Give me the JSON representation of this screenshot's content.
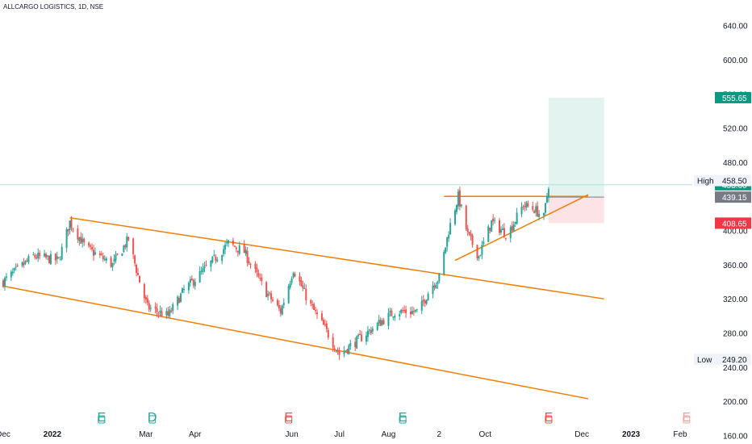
{
  "header": {
    "title": "ALLCARGO LOGISTICS, 1D, NSE"
  },
  "colors": {
    "up": "#26a69a",
    "down": "#ef5350",
    "pattern": "#f57c00",
    "target_zone": "#e3f3ef",
    "stop_zone": "#fce4e6",
    "close_line": "#b2dfdb"
  },
  "chart_data": {
    "type": "candlestick",
    "title": "ALLCARGO LOGISTICS, 1D, NSE",
    "y_axis": {
      "ticks": [
        "640.00",
        "600.00",
        "560.00",
        "520.00",
        "480.00",
        "440.00",
        "400.00",
        "360.00",
        "320.00",
        "280.00",
        "240.00",
        "200.00",
        "160.00"
      ],
      "range": [
        150,
        670
      ]
    },
    "x_axis": {
      "labels": [
        {
          "text": "Dec",
          "date": "2021-12-01",
          "bold": false
        },
        {
          "text": "2022",
          "date": "2022-01-01",
          "bold": true
        },
        {
          "text": "Mar",
          "date": "2022-03-01",
          "bold": false
        },
        {
          "text": "Apr",
          "date": "2022-04-01",
          "bold": false
        },
        {
          "text": "Jun",
          "date": "2022-06-01",
          "bold": false
        },
        {
          "text": "Jul",
          "date": "2022-07-01",
          "bold": false
        },
        {
          "text": "Aug",
          "date": "2022-08-01",
          "bold": false
        },
        {
          "text": "2",
          "date": "2022-09-02",
          "bold": false
        },
        {
          "text": "Oct",
          "date": "2022-10-01",
          "bold": false
        },
        {
          "text": "Dec",
          "date": "2022-12-01",
          "bold": false
        },
        {
          "text": "2023",
          "date": "2023-01-01",
          "bold": true
        },
        {
          "text": "Feb",
          "date": "2023-02-01",
          "bold": false
        }
      ]
    },
    "price_path": [
      {
        "date": "2021-12-01",
        "close": 340
      },
      {
        "date": "2021-12-20",
        "close": 370
      },
      {
        "date": "2022-01-05",
        "close": 365
      },
      {
        "date": "2022-01-12",
        "close": 410
      },
      {
        "date": "2022-01-22",
        "close": 380
      },
      {
        "date": "2022-02-08",
        "close": 360
      },
      {
        "date": "2022-02-18",
        "close": 390
      },
      {
        "date": "2022-02-25",
        "close": 340
      },
      {
        "date": "2022-03-02",
        "close": 310
      },
      {
        "date": "2022-03-15",
        "close": 300
      },
      {
        "date": "2022-03-25",
        "close": 330
      },
      {
        "date": "2022-04-10",
        "close": 360
      },
      {
        "date": "2022-04-22",
        "close": 385
      },
      {
        "date": "2022-05-02",
        "close": 375
      },
      {
        "date": "2022-05-15",
        "close": 330
      },
      {
        "date": "2022-05-25",
        "close": 305
      },
      {
        "date": "2022-06-02",
        "close": 355
      },
      {
        "date": "2022-06-12",
        "close": 315
      },
      {
        "date": "2022-06-22",
        "close": 285
      },
      {
        "date": "2022-07-01",
        "close": 255
      },
      {
        "date": "2022-07-15",
        "close": 275
      },
      {
        "date": "2022-07-25",
        "close": 290
      },
      {
        "date": "2022-08-05",
        "close": 305
      },
      {
        "date": "2022-08-20",
        "close": 305
      },
      {
        "date": "2022-08-28",
        "close": 335
      },
      {
        "date": "2022-09-02",
        "close": 345
      },
      {
        "date": "2022-09-08",
        "close": 400
      },
      {
        "date": "2022-09-14",
        "close": 440
      },
      {
        "date": "2022-09-20",
        "close": 395
      },
      {
        "date": "2022-09-27",
        "close": 370
      },
      {
        "date": "2022-10-05",
        "close": 410
      },
      {
        "date": "2022-10-15",
        "close": 395
      },
      {
        "date": "2022-10-25",
        "close": 430
      },
      {
        "date": "2022-11-01",
        "close": 425
      },
      {
        "date": "2022-11-07",
        "close": 415
      },
      {
        "date": "2022-11-10",
        "close": 453.6
      }
    ],
    "levels": {
      "target": "555.65",
      "high_label": "High",
      "high_value": "458.50",
      "current": "453.60",
      "entry": "439.15",
      "stop": "408.65",
      "low_label": "Low",
      "low_value": "249.20"
    },
    "level_values": {
      "target": 555.65,
      "high": 458.5,
      "current": 453.6,
      "entry": 439.15,
      "stop": 408.65,
      "low": 249.2
    },
    "trendlines": [
      {
        "name": "channel-upper",
        "from": {
          "date": "2022-01-12",
          "price": 415
        },
        "to": {
          "date": "2022-12-15",
          "price": 320
        }
      },
      {
        "name": "channel-lower",
        "from": {
          "date": "2021-12-01",
          "price": 335
        },
        "to": {
          "date": "2022-12-05",
          "price": 203
        }
      },
      {
        "name": "resistance",
        "from": {
          "date": "2022-09-05",
          "price": 440
        },
        "to": {
          "date": "2022-12-05",
          "price": 440
        }
      },
      {
        "name": "ascending-support",
        "from": {
          "date": "2022-09-12",
          "price": 365
        },
        "to": {
          "date": "2022-12-05",
          "price": 442
        }
      }
    ],
    "position": {
      "start": "2022-11-10",
      "end": "2022-12-15"
    },
    "events": [
      {
        "letter": "E",
        "date": "2022-02-01",
        "kind": "earnings"
      },
      {
        "letter": "D",
        "date": "2022-03-05",
        "kind": "dividend"
      },
      {
        "letter": "E",
        "date": "2022-05-30",
        "kind": "earnings-red"
      },
      {
        "letter": "E",
        "date": "2022-08-10",
        "kind": "earnings"
      },
      {
        "letter": "E",
        "date": "2022-11-10",
        "kind": "earnings-red"
      },
      {
        "letter": "E",
        "date": "2023-02-05",
        "kind": "earnings-faded"
      }
    ]
  }
}
